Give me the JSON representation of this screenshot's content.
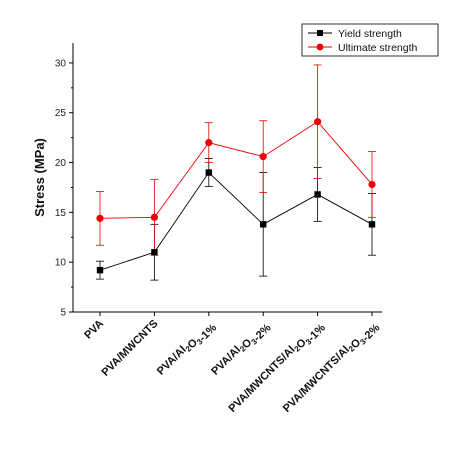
{
  "chart_data": {
    "type": "line",
    "title": "",
    "xlabel": "",
    "ylabel": "Stress (MPa)",
    "ylim": [
      5,
      32
    ],
    "yticks": [
      5,
      10,
      15,
      20,
      25,
      30
    ],
    "categories": [
      {
        "parts": [
          {
            "t": "PVA"
          }
        ]
      },
      {
        "parts": [
          {
            "t": "PVA/MWCNTS"
          }
        ]
      },
      {
        "parts": [
          {
            "t": "PVA/Al"
          },
          {
            "t": "2",
            "sub": true
          },
          {
            "t": "O"
          },
          {
            "t": "3",
            "sub": true
          },
          {
            "t": "-1%"
          }
        ]
      },
      {
        "parts": [
          {
            "t": "PVA/Al"
          },
          {
            "t": "2",
            "sub": true
          },
          {
            "t": "O"
          },
          {
            "t": "3",
            "sub": true
          },
          {
            "t": "-2%"
          }
        ]
      },
      {
        "parts": [
          {
            "t": "PVA/MWCNTS/Al"
          },
          {
            "t": "2",
            "sub": true
          },
          {
            "t": "O"
          },
          {
            "t": "3",
            "sub": true
          },
          {
            "t": "-1%"
          }
        ]
      },
      {
        "parts": [
          {
            "t": "PVA/MWCNTS/Al"
          },
          {
            "t": "2",
            "sub": true
          },
          {
            "t": "O"
          },
          {
            "t": "3",
            "sub": true
          },
          {
            "t": "-2%"
          }
        ]
      }
    ],
    "series": [
      {
        "name": "Yield strength",
        "color": "#000000",
        "marker": "square",
        "values": [
          9.2,
          11.0,
          19.0,
          13.8,
          16.8,
          13.8
        ],
        "errors": [
          0.9,
          2.8,
          1.4,
          5.2,
          2.7,
          3.1
        ]
      },
      {
        "name": "Ultimate strength",
        "color": "#ee0000",
        "marker": "circle",
        "values": [
          14.4,
          14.5,
          22.0,
          20.6,
          24.1,
          17.8
        ],
        "errors": [
          2.7,
          3.8,
          2.0,
          3.6,
          5.7,
          3.3
        ]
      }
    ],
    "legend_position": "top-right",
    "grid": false
  }
}
